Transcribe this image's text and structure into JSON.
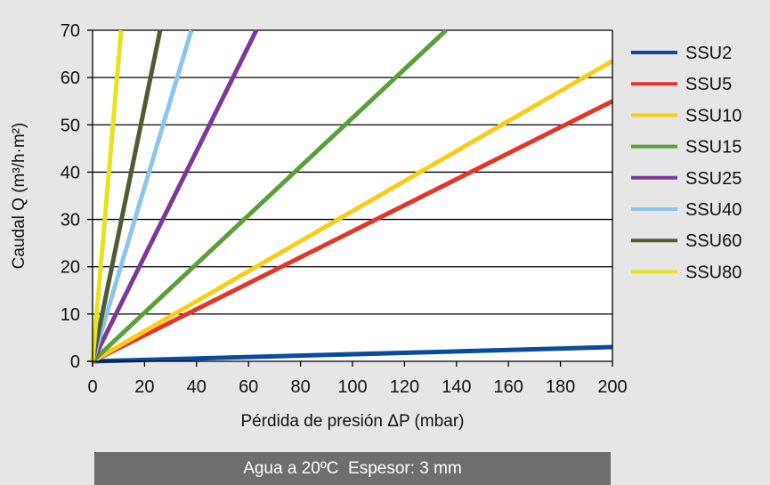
{
  "chart_data": {
    "type": "line",
    "title": "",
    "xlabel": "Pérdida de presión ΔP (mbar)",
    "ylabel": "Caudal Q (m³/h·m²)",
    "xlim": [
      0,
      200
    ],
    "ylim": [
      0,
      70
    ],
    "x_ticks": [
      0,
      20,
      40,
      60,
      80,
      100,
      120,
      140,
      160,
      180,
      200
    ],
    "y_ticks": [
      0,
      10,
      20,
      30,
      40,
      50,
      60,
      70
    ],
    "grid": "horizontal",
    "legend_position": "right",
    "series": [
      {
        "name": "SSU2",
        "color": "#0a4a9c",
        "x": [
          0,
          200
        ],
        "y": [
          0,
          3
        ]
      },
      {
        "name": "SSU5",
        "color": "#e2362a",
        "x": [
          0,
          200
        ],
        "y": [
          0,
          55
        ]
      },
      {
        "name": "SSU10",
        "color": "#f9cc18",
        "x": [
          0,
          200
        ],
        "y": [
          0,
          63.5
        ]
      },
      {
        "name": "SSU15",
        "color": "#5a9f3a",
        "x": [
          0,
          136
        ],
        "y": [
          0,
          70
        ]
      },
      {
        "name": "SSU25",
        "color": "#7b3a96",
        "x": [
          0,
          63
        ],
        "y": [
          0,
          70
        ]
      },
      {
        "name": "SSU40",
        "color": "#8ec4ec",
        "x": [
          0,
          38
        ],
        "y": [
          0,
          70
        ]
      },
      {
        "name": "SSU60",
        "color": "#4f5b32",
        "x": [
          0,
          26
        ],
        "y": [
          0,
          70
        ]
      },
      {
        "name": "SSU80",
        "color": "#e6e21c",
        "x": [
          0,
          11
        ],
        "y": [
          0,
          70
        ]
      }
    ]
  },
  "caption": "Agua a 20ºC  Espesor: 3 mm"
}
